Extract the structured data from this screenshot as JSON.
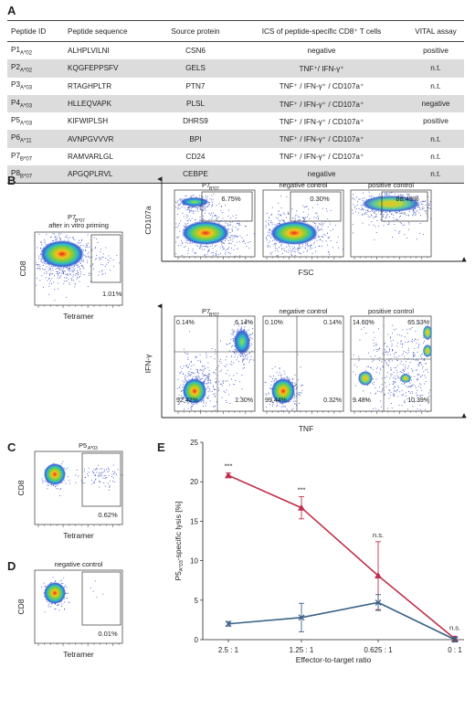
{
  "panels": {
    "A": "A",
    "B": "B",
    "C": "C",
    "D": "D",
    "E": "E"
  },
  "table": {
    "headers": [
      "Peptide ID",
      "Peptide sequence",
      "Source protein",
      "ICS of peptide-specific CD8⁺ T cells",
      "VITAL assay"
    ],
    "rows": [
      {
        "id": "P1",
        "hla": "A*02",
        "seq": "ALHPLVILNI",
        "src": "CSN6",
        "ics": "negative",
        "vital": "positive"
      },
      {
        "id": "P2",
        "hla": "A*02",
        "seq": "KQGFEPPSFV",
        "src": "GELS",
        "ics": "TNF⁺/ IFN-γ⁺",
        "vital": "n.t."
      },
      {
        "id": "P3",
        "hla": "A*03",
        "seq": "RTAGHPLTR",
        "src": "PTN7",
        "ics": "TNF⁺ / IFN-γ⁺ / CD107a⁺",
        "vital": "n.t."
      },
      {
        "id": "P4",
        "hla": "A*03",
        "seq": "HLLEQVAPK",
        "src": "PLSL",
        "ics": "TNF⁺ / IFN-γ⁺ / CD107a⁺",
        "vital": "negative"
      },
      {
        "id": "P5",
        "hla": "A*03",
        "seq": "KIFWIPLSH",
        "src": "DHRS9",
        "ics": "TNF⁺ / IFN-γ⁺ / CD107a⁺",
        "vital": "positive"
      },
      {
        "id": "P6",
        "hla": "A*11",
        "seq": "AVNPGVVVR",
        "src": "BPI",
        "ics": "TNF⁺ / IFN-γ⁺ / CD107a⁺",
        "vital": "n.t."
      },
      {
        "id": "P7",
        "hla": "B*07",
        "seq": "RAMVARLGL",
        "src": "CD24",
        "ics": "TNF⁺ / IFN-γ⁺ / CD107a⁺",
        "vital": "n.t."
      },
      {
        "id": "P8",
        "hla": "B*07",
        "seq": "APGQPLRVL",
        "src": "CEBPE",
        "ics": "negative",
        "vital": "n.t."
      }
    ]
  },
  "panelB": {
    "tet_title1": "P7",
    "tet_title_sub": "B*07",
    "tet_title2": "after in vitro priming",
    "tet_ylabel": "CD8",
    "tet_xlabel": "Tetramer",
    "tet_pct": "1.01%",
    "cd107_ylabel": "CD107a",
    "cd107_xlabel": "FSC",
    "cd107_titles": [
      "P7",
      "negative control",
      "positive control"
    ],
    "cd107_pcts": [
      "6.75%",
      "0.30%",
      "88.43%"
    ],
    "ifn_ylabel": "IFN-γ",
    "ifn_xlabel": "TNF",
    "ifn_titles": [
      "P7",
      "negative control",
      "positive control"
    ],
    "ifn_quads": [
      {
        "ul": "0.14%",
        "ur": "6.14%",
        "ll": "92.42%",
        "lr": "1.30%"
      },
      {
        "ul": "0.10%",
        "ur": "0.14%",
        "ll": "99.44%",
        "lr": "0.32%"
      },
      {
        "ul": "14.60%",
        "ur": "65.53%",
        "ll": "9.48%",
        "lr": "10.39%"
      }
    ]
  },
  "panelC": {
    "title": "P5",
    "title_sub": "A*03",
    "ylabel": "CD8",
    "xlabel": "Tetramer",
    "pct": "0.62%"
  },
  "panelD": {
    "title": "negative control",
    "ylabel": "CD8",
    "xlabel": "Tetramer",
    "pct": "0.01%"
  },
  "chart_data": {
    "type": "line",
    "categories": [
      "2.5 : 1",
      "1.25 : 1",
      "0.625 : 1",
      "0 : 1"
    ],
    "xlabel": "Effector-to-target ratio",
    "ylabel_prefix": "P5",
    "ylabel_sub": "A*03",
    "ylabel_suffix": "-specific lysis [%]",
    "ylim": [
      0,
      25
    ],
    "yticks": [
      0,
      5,
      10,
      15,
      20,
      25
    ],
    "series": [
      {
        "marker": "triangle",
        "color": "#c0304a",
        "values": [
          20.8,
          16.7,
          8.1,
          0.1
        ],
        "errors": [
          0.3,
          1.4,
          4.3,
          0.3
        ]
      },
      {
        "marker": "x",
        "color": "#3a6186",
        "values": [
          2.0,
          2.8,
          4.7,
          0.0
        ],
        "errors": [
          0.3,
          1.8,
          1.0,
          0.3
        ]
      }
    ],
    "annotations": [
      "***",
      "***",
      "n.s.",
      "n.s."
    ]
  }
}
